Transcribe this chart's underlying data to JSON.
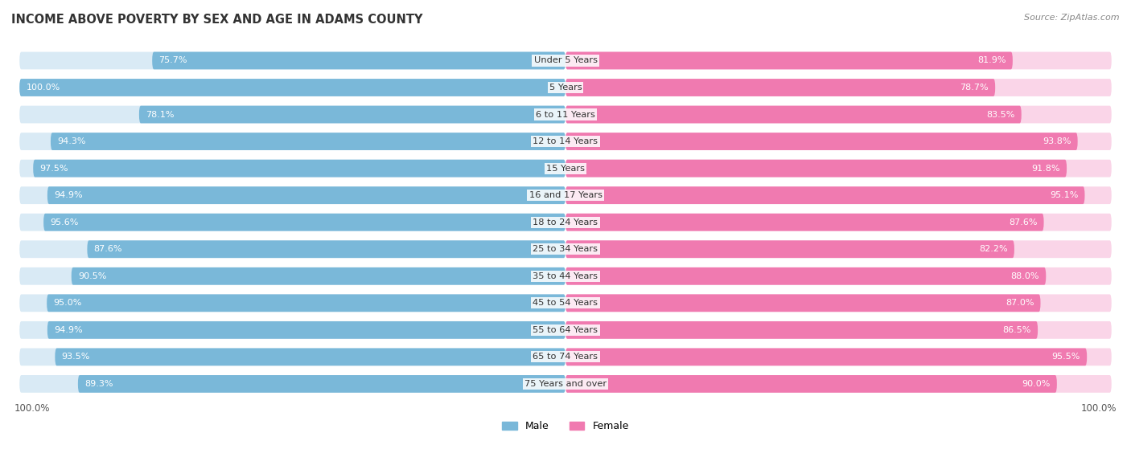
{
  "title": "INCOME ABOVE POVERTY BY SEX AND AGE IN ADAMS COUNTY",
  "source": "Source: ZipAtlas.com",
  "categories": [
    "Under 5 Years",
    "5 Years",
    "6 to 11 Years",
    "12 to 14 Years",
    "15 Years",
    "16 and 17 Years",
    "18 to 24 Years",
    "25 to 34 Years",
    "35 to 44 Years",
    "45 to 54 Years",
    "55 to 64 Years",
    "65 to 74 Years",
    "75 Years and over"
  ],
  "male_values": [
    75.7,
    100.0,
    78.1,
    94.3,
    97.5,
    94.9,
    95.6,
    87.6,
    90.5,
    95.0,
    94.9,
    93.5,
    89.3
  ],
  "female_values": [
    81.9,
    78.7,
    83.5,
    93.8,
    91.8,
    95.1,
    87.6,
    82.2,
    88.0,
    87.0,
    86.5,
    95.5,
    90.0
  ],
  "male_color": "#7ab8d9",
  "male_bg_color": "#d9eaf5",
  "female_color": "#f07ab0",
  "female_bg_color": "#fad5e8",
  "bar_height": 0.65,
  "max_value": 100.0,
  "legend_male": "Male",
  "legend_female": "Female",
  "title_fontsize": 10.5,
  "label_fontsize": 8.2,
  "value_fontsize": 8.0,
  "axis_label_left": "100.0%",
  "axis_label_right": "100.0%"
}
